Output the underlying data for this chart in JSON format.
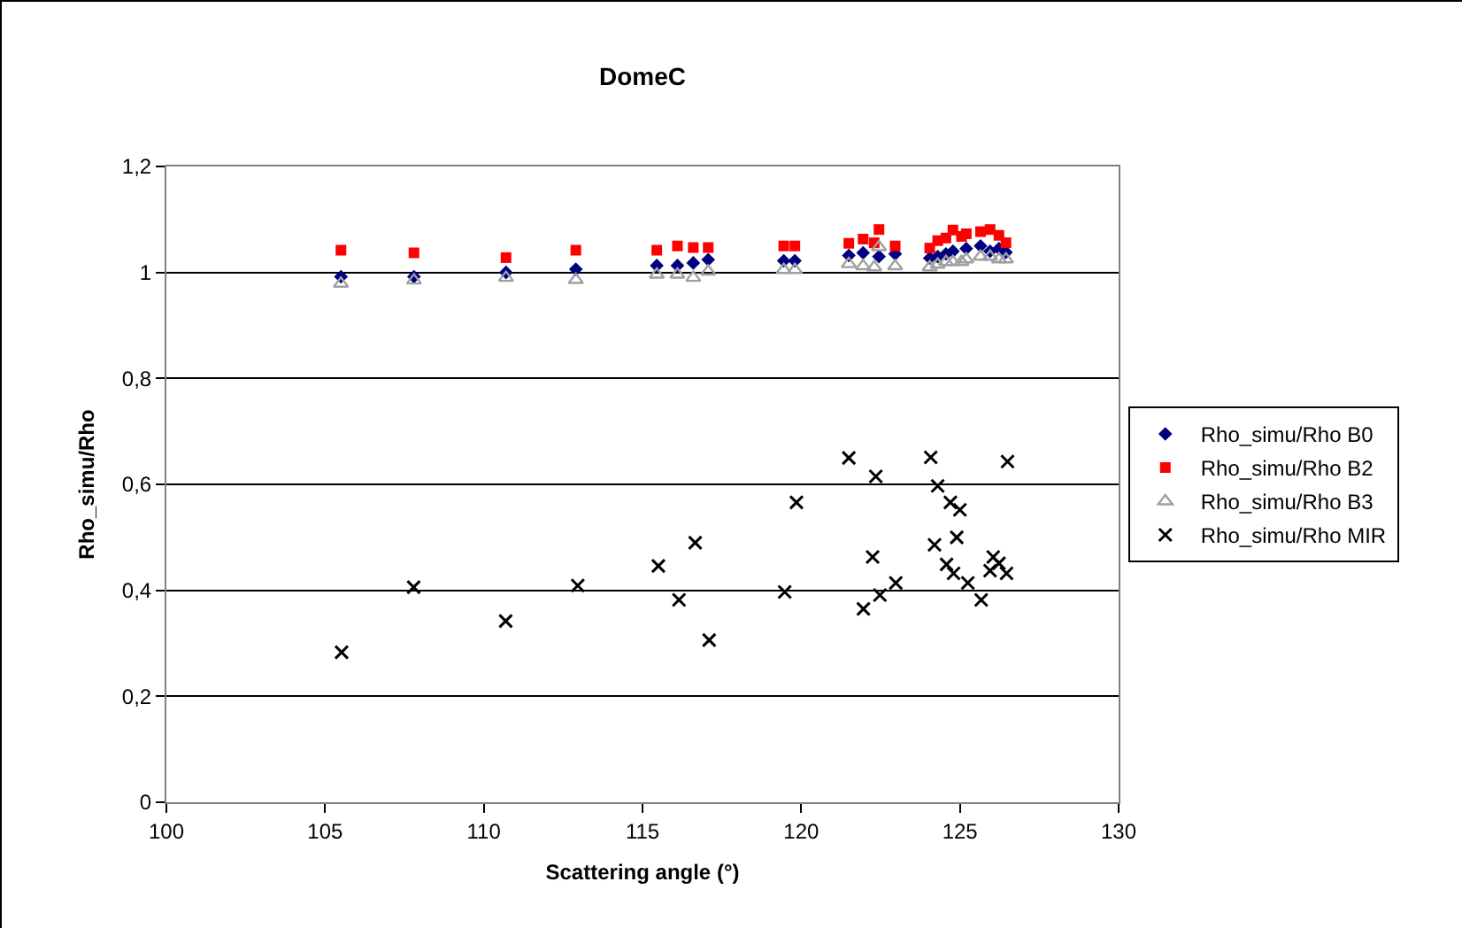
{
  "chart_data": {
    "type": "scatter",
    "title": "DomeC",
    "xlabel": "Scattering angle (°)",
    "ylabel": "Rho_simu/Rho",
    "x": [
      105.5,
      107.8,
      110.7,
      112.9,
      115.45,
      116.1,
      116.6,
      117.07,
      119.45,
      119.8,
      121.5,
      121.95,
      122.3,
      122.45,
      122.96,
      124.05,
      124.3,
      124.56,
      124.78,
      125.05,
      125.2,
      125.65,
      125.95,
      126.23,
      126.45
    ],
    "series": [
      {
        "name": "Rho_simu/Rho B0",
        "color": "#000080",
        "marker": "diamond",
        "values": [
          0.992,
          0.992,
          1.0,
          1.006,
          1.013,
          1.013,
          1.018,
          1.024,
          1.022,
          1.022,
          1.032,
          1.037,
          null,
          1.03,
          1.035,
          1.027,
          1.03,
          1.035,
          1.04,
          null,
          1.045,
          1.05,
          1.04,
          1.045,
          1.038
        ]
      },
      {
        "name": "Rho_simu/Rho B2",
        "color": "#ff0000",
        "marker": "square",
        "values": [
          1.042,
          1.037,
          1.028,
          1.042,
          1.042,
          1.05,
          1.047,
          1.047,
          1.05,
          1.05,
          1.055,
          1.063,
          1.056,
          1.081,
          1.05,
          1.046,
          1.06,
          1.065,
          1.08,
          1.068,
          1.073,
          1.077,
          1.081,
          1.07,
          1.056
        ]
      },
      {
        "name": "Rho_simu/Rho B3",
        "color": "#a0a0a0",
        "marker": "triangle",
        "values": [
          0.979,
          0.985,
          0.99,
          0.986,
          0.996,
          0.996,
          0.99,
          1.002,
          1.005,
          1.005,
          1.016,
          1.012,
          1.01,
          1.048,
          1.012,
          1.01,
          1.015,
          1.02,
          1.02,
          1.02,
          1.025,
          1.03,
          1.03,
          1.025,
          1.025
        ]
      },
      {
        "name": "Rho_simu/Rho MIR",
        "color": "#000000",
        "marker": "cross",
        "x": [
          105.52,
          107.79,
          110.69,
          112.96,
          115.5,
          116.15,
          116.66,
          117.1,
          119.48,
          119.85,
          121.5,
          121.96,
          122.25,
          122.35,
          122.48,
          122.98,
          124.08,
          124.2,
          124.3,
          124.58,
          124.7,
          124.8,
          124.9,
          125.0,
          125.25,
          125.67,
          125.95,
          126.05,
          126.23,
          126.47,
          126.5
        ],
        "values": [
          0.283,
          0.406,
          0.342,
          0.409,
          0.446,
          0.382,
          0.49,
          0.306,
          0.397,
          0.566,
          0.65,
          0.365,
          0.463,
          0.615,
          0.391,
          0.414,
          0.651,
          0.486,
          0.597,
          0.449,
          0.566,
          0.432,
          0.5,
          0.552,
          0.414,
          0.382,
          0.437,
          0.463,
          0.451,
          0.432,
          0.643
        ]
      }
    ],
    "xlim": [
      100,
      130
    ],
    "xticks": [
      100,
      105,
      110,
      115,
      120,
      125,
      130
    ],
    "ylim": [
      0,
      1.2
    ],
    "yticks": [
      0,
      {
        "value": 0.2,
        "label": "0,2"
      },
      {
        "value": 0.4,
        "label": "0,4"
      },
      {
        "value": 0.6,
        "label": "0,6"
      },
      {
        "value": 0.8,
        "label": "0,8"
      },
      1,
      {
        "value": 1.2,
        "label": "1,2"
      }
    ],
    "grid": "y",
    "legend": "right"
  }
}
